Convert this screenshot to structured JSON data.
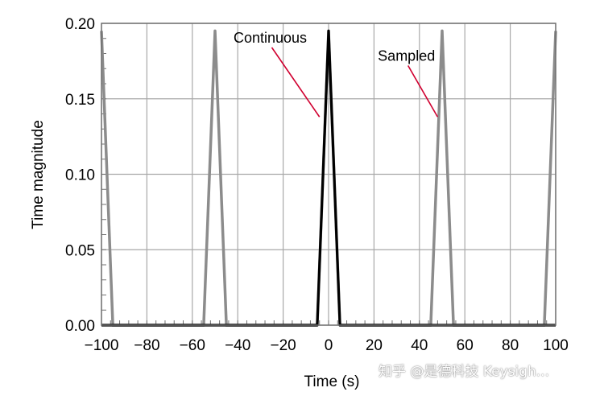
{
  "chart_data": {
    "type": "line",
    "xlabel": "Time (s)",
    "ylabel": "Time magnitude",
    "xlim": [
      -100,
      100
    ],
    "ylim": [
      0,
      0.2
    ],
    "xticks": [
      -100,
      -80,
      -60,
      -40,
      -20,
      0,
      20,
      40,
      60,
      80,
      100
    ],
    "yticks": [
      0.0,
      0.05,
      0.1,
      0.15,
      0.2
    ],
    "xtick_labels": [
      "−100",
      "−80",
      "−60",
      "−40",
      "−20",
      "0",
      "20",
      "40",
      "60",
      "80",
      "100"
    ],
    "ytick_labels": [
      "0.00",
      "0.05",
      "0.10",
      "0.15",
      "0.20"
    ],
    "grid": true,
    "series": [
      {
        "name": "Sampled",
        "color": "#8c8c8c",
        "x": [
          -100,
          -95,
          -55,
          -50,
          -45,
          -5,
          0,
          5,
          45,
          50,
          55,
          95,
          100
        ],
        "y": [
          0.195,
          0.0,
          0.0,
          0.195,
          0.0,
          0.0,
          0.195,
          0.0,
          0.0,
          0.195,
          0.0,
          0.0,
          0.195
        ]
      },
      {
        "name": "Continuous",
        "color": "#000000",
        "x": [
          -100,
          -5,
          0,
          5,
          100
        ],
        "y": [
          0.0,
          0.0,
          0.195,
          0.0,
          0.0
        ]
      }
    ],
    "annotations": [
      {
        "text": "Continuous",
        "color": "#d00030",
        "tip": [
          -4,
          0.138
        ],
        "anchor": [
          -25,
          0.184
        ]
      },
      {
        "text": "Sampled",
        "color": "#d00030",
        "tip": [
          48,
          0.138
        ],
        "anchor": [
          35,
          0.172
        ]
      }
    ]
  },
  "watermark": "知乎 @是德科技 Keysigh..."
}
